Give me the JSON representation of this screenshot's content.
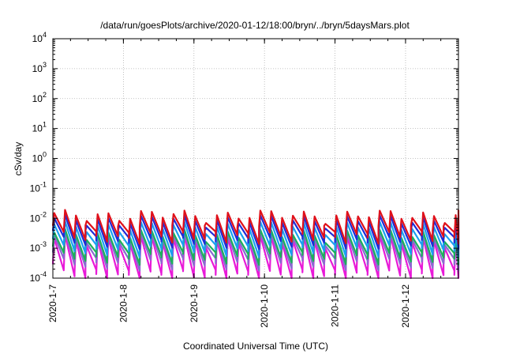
{
  "chart_data": {
    "type": "line",
    "title": "/data/run/goesPlots/archive/2020-01-12/18:00/bryn/../bryn/5daysMars.plot",
    "xlabel": "Coordinated Universal Time (UTC)",
    "ylabel": "cSv/day",
    "yscale": "log",
    "ylim": [
      0.0001,
      10000
    ],
    "xlim": [
      "2020-01-07 00:00",
      "2020-01-12 18:00"
    ],
    "x_ticks": [
      "2020-1-7",
      "2020-1-8",
      "2020-1-9",
      "2020-1-10",
      "2020-1-11",
      "2020-1-12"
    ],
    "y_ticks": [
      {
        "base": "10",
        "exp": "-4"
      },
      {
        "base": "10",
        "exp": "-3"
      },
      {
        "base": "10",
        "exp": "-2"
      },
      {
        "base": "10",
        "exp": "-1"
      },
      {
        "base": "10",
        "exp": "0"
      },
      {
        "base": "10",
        "exp": "1"
      },
      {
        "base": "10",
        "exp": "2"
      },
      {
        "base": "10",
        "exp": "3"
      },
      {
        "base": "10",
        "exp": "4"
      }
    ],
    "grid": true,
    "legend": "none",
    "pattern": {
      "cycles_per_day": 6.5,
      "rise_fraction": 0.12,
      "day_values": [
        "2020-1-7",
        "2020-1-8",
        "2020-1-9",
        "2020-1-10",
        "2020-1-11",
        "2020-1-12"
      ]
    },
    "series": [
      {
        "color": "#e0101a",
        "peak": 0.013,
        "trough": 0.0025
      },
      {
        "color": "#1f2bd8",
        "peak": 0.009,
        "trough": 0.0017
      },
      {
        "color": "#1aa0f0",
        "peak": 0.0055,
        "trough": 0.0009
      },
      {
        "color": "#1bb05a",
        "peak": 0.003,
        "trough": 0.0005
      },
      {
        "color": "#8a6ad0",
        "peak": 0.0024,
        "trough": 0.00032
      },
      {
        "color": "#e81ad8",
        "peak": 0.0019,
        "trough": 0.00013
      }
    ]
  }
}
